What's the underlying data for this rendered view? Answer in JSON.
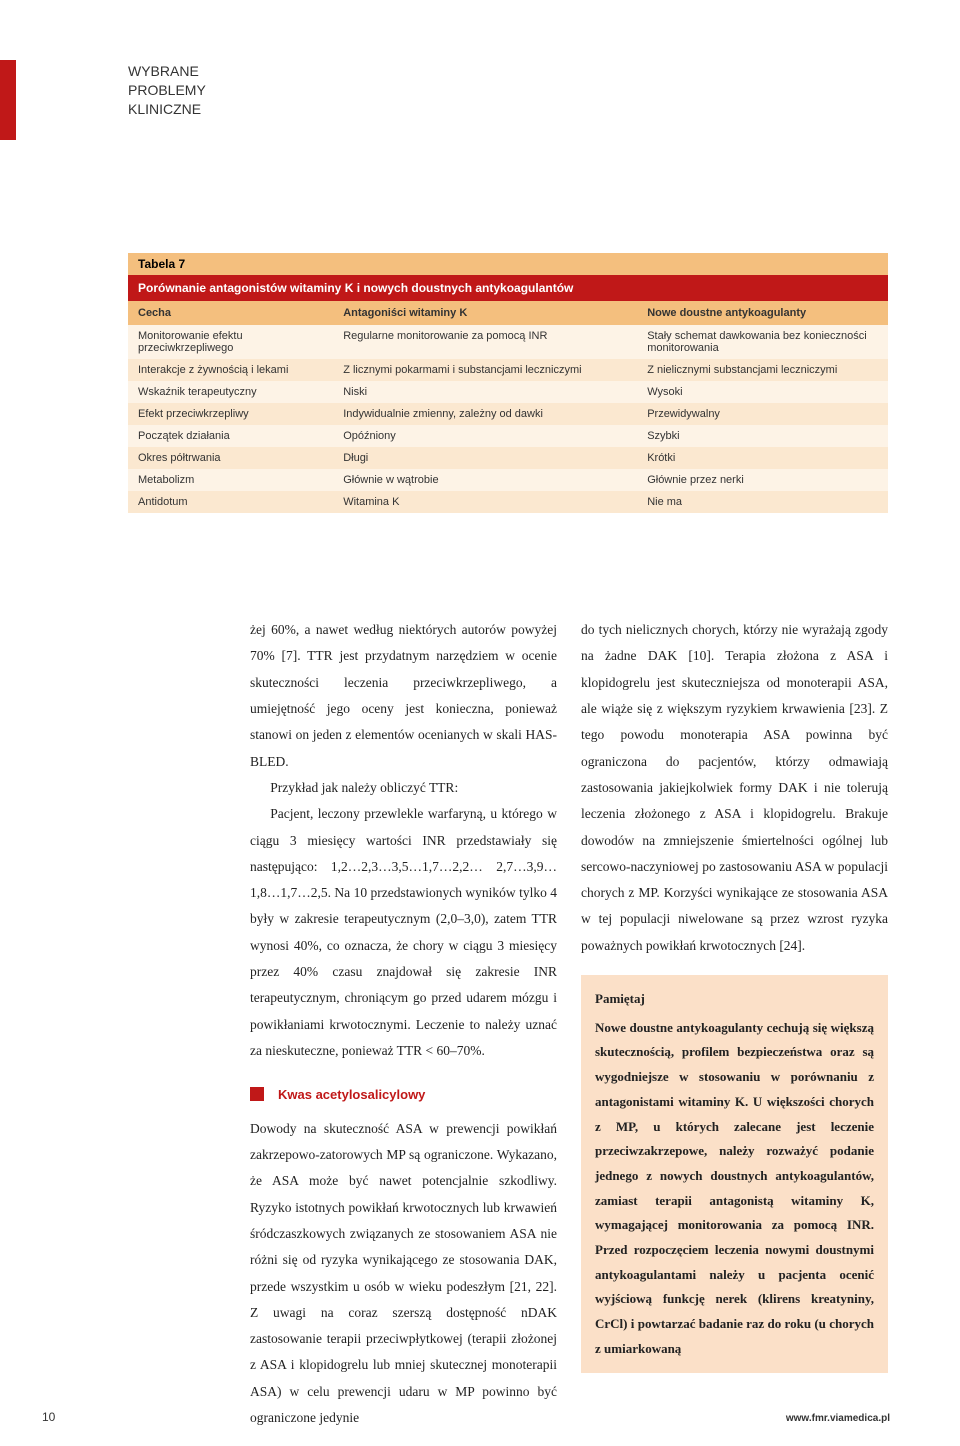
{
  "header": {
    "line1": "WYBRANE",
    "line2": "PROBLEMY",
    "line3": "KLINICZNE"
  },
  "table": {
    "label": "Tabela 7",
    "title": "Porównanie antagonistów witaminy K i nowych doustnych antykoagulantów",
    "columns": [
      "Cecha",
      "Antagoniści witaminy K",
      "Nowe doustne antykoagulanty"
    ],
    "rows": [
      [
        "Monitorowanie efektu przeciwkrzepliwego",
        "Regularne monitorowanie za pomocą INR",
        "Stały schemat dawkowania bez konieczności monitorowania"
      ],
      [
        "Interakcje z żywnością i lekami",
        "Z licznymi pokarmami i substancjami leczniczymi",
        "Z nielicznymi substancjami leczniczymi"
      ],
      [
        "Wskaźnik terapeutyczny",
        "Niski",
        "Wysoki"
      ],
      [
        "Efekt przeciwkrzepliwy",
        "Indywidualnie zmienny, zależny od dawki",
        "Przewidywalny"
      ],
      [
        "Początek działania",
        "Opóźniony",
        "Szybki"
      ],
      [
        "Okres półtrwania",
        "Długi",
        "Krótki"
      ],
      [
        "Metabolizm",
        "Głównie w wątrobie",
        "Głównie przez nerki"
      ],
      [
        "Antidotum",
        "Witamina K",
        "Nie ma"
      ]
    ],
    "col_widths": [
      "27%",
      "40%",
      "33%"
    ]
  },
  "body": {
    "left": {
      "p1": "żej 60%, a nawet według niektórych autorów powyżej 70% [7]. TTR jest przydatnym narzędziem w ocenie skuteczności leczenia przeciwkrzepliwego, a umiejętność jego oceny jest konieczna, ponieważ stanowi on jeden z elementów ocenianych w skali HAS-BLED.",
      "p2": "Przykład jak należy obliczyć TTR:",
      "p3": "Pacjent, leczony przewlekle warfaryną, u którego w ciągu 3 miesięcy wartości INR przedstawiały się następująco: 1,2…2,3…3,5…1,7…2,2… 2,7…3,9…1,8…1,7…2,5. Na 10 przedstawionych wyników tylko 4 były w zakresie terapeutycznym (2,0–3,0), zatem TTR wynosi 40%, co oznacza, że chory w ciągu 3 miesięcy przez 40% czasu znajdował się zakresie INR terapeutycznym, chroniącym go przed udarem mózgu i powikłaniami krwotocznymi. Leczenie to należy uznać za nieskuteczne, ponieważ TTR < 60–70%.",
      "sec_head": "Kwas acetylosalicylowy",
      "p4": "Dowody na skuteczność ASA w prewencji powikłań zakrzepowo-zatorowych MP są ograniczone. Wykazano, że ASA może być nawet potencjalnie szkodliwy. Ryzyko istotnych powikłań krwotocznych lub krwawień śródczaszkowych związanych ze stosowaniem ASA nie różni się od ryzyka wynikającego ze stosowania DAK, przede wszystkim u osób w wieku podeszłym [21, 22]. Z uwagi na coraz szerszą dostępność nDAK zastosowanie terapii przeciwpłytkowej (terapii złożonej z ASA i klopidogrelu lub mniej skutecznej monoterapii ASA) w celu prewencji udaru w MP powinno być ograniczone jedynie"
    },
    "right": {
      "p1": "do tych nielicznych chorych, którzy nie wyrażają zgody na żadne DAK [10]. Terapia złożona z ASA i klopidogrelu jest skuteczniejsza od monoterapii ASA, ale wiąże się z większym ryzykiem krwawienia [23]. Z tego powodu monoterapia ASA powinna być ograniczona do pacjentów, którzy odmawiają zastosowania jakiejkolwiek formy DAK i nie tolerują leczenia złożonego z ASA i klopidogrelu. Brakuje dowodów na zmniejszenie śmiertelności ogólnej lub sercowo-naczyniowej po zastosowaniu ASA w populacji chorych z MP. Korzyści wynikające ze stosowania ASA w tej populacji niwelowane są przez wzrost ryzyka poważnych powikłań krwotocznych [24].",
      "remember_title": "Pamiętaj",
      "remember": "Nowe doustne antykoagulanty cechują się większą skutecznością, profilem bezpieczeństwa oraz są wygodniejsze w stosowaniu w porównaniu z antagonistami witaminy K.\nU większości chorych z MP, u których zalecane jest leczenie przeciwzakrzepowe, należy rozważyć podanie jednego z nowych doustnych antykoagulantów, zamiast terapii antagonistą witaminy K, wymagającej monitorowania za pomocą INR.\nPrzed rozpoczęciem leczenia nowymi doustnymi antykoagulantami należy u pacjenta ocenić wyjściową funkcję nerek (klirens kreatyniny, CrCl) i powtarzać badanie raz do roku (u chorych z umiarkowaną"
    }
  },
  "footer": {
    "page_num": "10",
    "url": "www.fmr.viamedica.pl"
  },
  "colors": {
    "accent_red": "#c01818",
    "table_header_bg": "#f4bf7e",
    "row_odd": "#fdf3e6",
    "row_even": "#fbe8d0",
    "remember_bg": "#fbe0c8"
  }
}
